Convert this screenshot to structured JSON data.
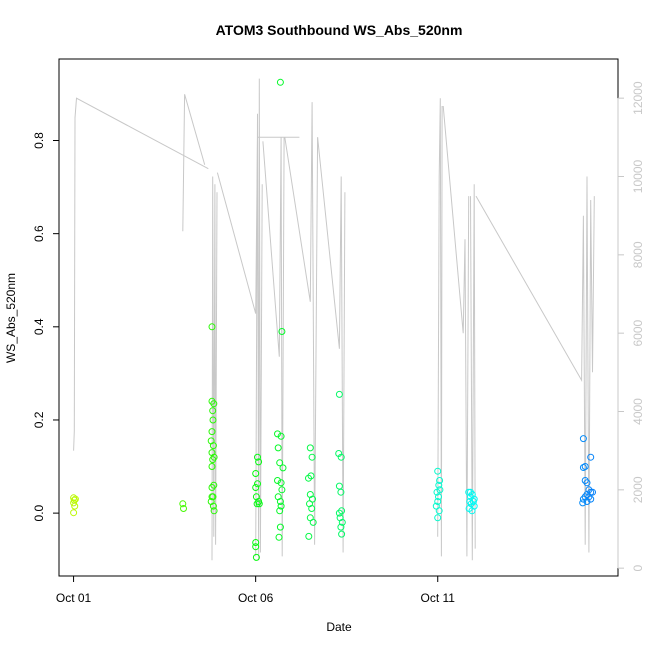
{
  "chart_data": {
    "type": "scatter",
    "title": "ATOM3 Southbound WS_Abs_520nm",
    "xlabel": "Date",
    "ylabel": "WS_Abs_520nm",
    "x_ticks": [
      {
        "day": 0,
        "label": "Oct 01"
      },
      {
        "day": 5,
        "label": "Oct 06"
      },
      {
        "day": 10,
        "label": "Oct 11"
      }
    ],
    "xlim": [
      -0.4,
      14.95
    ],
    "ylim": [
      -0.135,
      0.975
    ],
    "y_ticks": [
      0.0,
      0.2,
      0.4,
      0.6,
      0.8
    ],
    "y2lim": [
      -200,
      13000
    ],
    "y2_ticks": [
      0,
      2000,
      4000,
      6000,
      8000,
      10000,
      12000
    ],
    "grid": false,
    "legend": "none",
    "point_series": {
      "marker": "open-circle",
      "points": [
        [
          0.0,
          0.033
        ],
        [
          0.02,
          0.028
        ],
        [
          0.0,
          0.022
        ],
        [
          0.03,
          0.015
        ],
        [
          0.0,
          0.001
        ],
        [
          0.05,
          0.03
        ],
        [
          3.0,
          0.02
        ],
        [
          3.02,
          0.01
        ],
        [
          3.8,
          0.4
        ],
        [
          3.8,
          0.24
        ],
        [
          3.82,
          0.22
        ],
        [
          3.85,
          0.235
        ],
        [
          3.83,
          0.2
        ],
        [
          3.8,
          0.175
        ],
        [
          3.78,
          0.155
        ],
        [
          3.84,
          0.145
        ],
        [
          3.8,
          0.13
        ],
        [
          3.86,
          0.12
        ],
        [
          3.82,
          0.115
        ],
        [
          3.8,
          0.1
        ],
        [
          3.85,
          0.06
        ],
        [
          3.8,
          0.055
        ],
        [
          3.83,
          0.035
        ],
        [
          3.78,
          0.025
        ],
        [
          3.84,
          0.015
        ],
        [
          3.86,
          0.005
        ],
        [
          3.8,
          0.035
        ],
        [
          5.0,
          -0.063
        ],
        [
          5.0,
          -0.072
        ],
        [
          5.02,
          -0.095
        ],
        [
          5.05,
          0.12
        ],
        [
          5.08,
          0.11
        ],
        [
          5.0,
          0.085
        ],
        [
          5.05,
          0.063
        ],
        [
          5.0,
          0.055
        ],
        [
          5.02,
          0.035
        ],
        [
          5.08,
          0.025
        ],
        [
          5.04,
          0.02
        ],
        [
          5.1,
          0.02
        ],
        [
          5.6,
          0.17
        ],
        [
          5.7,
          0.165
        ],
        [
          5.62,
          0.14
        ],
        [
          5.66,
          0.108
        ],
        [
          5.75,
          0.097
        ],
        [
          5.6,
          0.07
        ],
        [
          5.7,
          0.065
        ],
        [
          5.72,
          0.05
        ],
        [
          5.62,
          0.035
        ],
        [
          5.68,
          0.025
        ],
        [
          5.7,
          0.015
        ],
        [
          5.66,
          0.005
        ],
        [
          5.68,
          -0.03
        ],
        [
          5.64,
          -0.052
        ],
        [
          5.72,
          0.39
        ],
        [
          5.68,
          0.925
        ],
        [
          6.5,
          0.14
        ],
        [
          6.55,
          0.12
        ],
        [
          6.45,
          0.075
        ],
        [
          6.52,
          0.08
        ],
        [
          6.5,
          0.04
        ],
        [
          6.56,
          0.03
        ],
        [
          6.48,
          0.02
        ],
        [
          6.54,
          0.01
        ],
        [
          6.5,
          -0.01
        ],
        [
          6.58,
          -0.02
        ],
        [
          6.46,
          -0.05
        ],
        [
          7.3,
          0.255
        ],
        [
          7.35,
          0.12
        ],
        [
          7.28,
          0.128
        ],
        [
          7.3,
          0.058
        ],
        [
          7.34,
          0.045
        ],
        [
          7.36,
          0.005
        ],
        [
          7.3,
          0.0
        ],
        [
          7.32,
          -0.01
        ],
        [
          7.38,
          -0.02
        ],
        [
          7.34,
          -0.03
        ],
        [
          7.36,
          -0.045
        ],
        [
          10.0,
          0.09
        ],
        [
          10.05,
          0.07
        ],
        [
          10.03,
          0.06
        ],
        [
          9.98,
          0.045
        ],
        [
          10.02,
          0.035
        ],
        [
          10.0,
          0.025
        ],
        [
          9.96,
          0.015
        ],
        [
          10.04,
          0.005
        ],
        [
          10.0,
          -0.01
        ],
        [
          10.06,
          0.05
        ],
        [
          10.85,
          0.045
        ],
        [
          10.95,
          0.04
        ],
        [
          10.9,
          0.035
        ],
        [
          11.0,
          0.03
        ],
        [
          10.88,
          0.025
        ],
        [
          10.92,
          0.02
        ],
        [
          11.0,
          0.015
        ],
        [
          10.86,
          0.01
        ],
        [
          10.94,
          0.005
        ],
        [
          10.98,
          0.025
        ],
        [
          10.9,
          0.045
        ],
        [
          14.0,
          0.16
        ],
        [
          14.05,
          0.1
        ],
        [
          14.0,
          0.098
        ],
        [
          14.2,
          0.12
        ],
        [
          14.05,
          0.07
        ],
        [
          14.1,
          0.065
        ],
        [
          14.15,
          0.05
        ],
        [
          14.2,
          0.045
        ],
        [
          14.25,
          0.045
        ],
        [
          14.1,
          0.04
        ],
        [
          14.05,
          0.035
        ],
        [
          14.0,
          0.03
        ],
        [
          14.15,
          0.035
        ],
        [
          14.2,
          0.03
        ],
        [
          14.1,
          0.025
        ],
        [
          13.98,
          0.022
        ]
      ]
    },
    "line_series": {
      "axis": "right",
      "legs": [
        {
          "path": [
            [
              0.0,
              3000
            ],
            [
              0.02,
              3500
            ],
            [
              0.04,
              11500
            ],
            [
              0.08,
              12000
            ],
            [
              3.7,
              10200
            ]
          ]
        },
        {
          "path": [
            [
              3.0,
              8600
            ],
            [
              3.05,
              12100
            ],
            [
              3.6,
              10300
            ]
          ]
        },
        {
          "path": [
            [
              3.8,
              200
            ],
            [
              3.82,
              10000
            ],
            [
              3.85,
              800
            ],
            [
              3.88,
              9800
            ],
            [
              3.9,
              600
            ],
            [
              3.94,
              9600
            ]
          ]
        },
        {
          "path": [
            [
              3.95,
              10100
            ],
            [
              5.0,
              6500
            ],
            [
              5.05,
              11000
            ],
            [
              6.2,
              11000
            ]
          ]
        },
        {
          "path": [
            [
              5.0,
              300
            ],
            [
              5.05,
              11600
            ],
            [
              5.08,
              200
            ],
            [
              5.1,
              12500
            ],
            [
              5.13,
              400
            ],
            [
              5.18,
              9800
            ]
          ]
        },
        {
          "path": [
            [
              5.2,
              10900
            ],
            [
              5.65,
              5400
            ],
            [
              5.7,
              11000
            ],
            [
              5.73,
              300
            ],
            [
              5.78,
              11000
            ]
          ]
        },
        {
          "path": [
            [
              5.8,
              11000
            ],
            [
              6.5,
              6800
            ],
            [
              6.55,
              11900
            ],
            [
              6.62,
              600
            ],
            [
              6.7,
              11000
            ]
          ]
        },
        {
          "path": [
            [
              6.7,
              11000
            ],
            [
              7.3,
              5600
            ],
            [
              7.35,
              10000
            ],
            [
              7.4,
              400
            ],
            [
              7.45,
              9600
            ]
          ]
        },
        {
          "path": [
            [
              10.0,
              800
            ],
            [
              10.04,
              10000
            ],
            [
              10.07,
              12000
            ],
            [
              10.1,
              300
            ],
            [
              10.12,
              11800
            ]
          ]
        },
        {
          "path": [
            [
              10.15,
              11800
            ],
            [
              10.7,
              6000
            ],
            [
              10.75,
              8400
            ],
            [
              10.8,
              300
            ],
            [
              10.85,
              9500
            ]
          ]
        },
        {
          "path": [
            [
              10.9,
              9500
            ],
            [
              10.95,
              200
            ],
            [
              11.0,
              9800
            ],
            [
              11.03,
              500
            ]
          ]
        },
        {
          "path": [
            [
              11.05,
              9500
            ],
            [
              13.95,
              4800
            ],
            [
              14.0,
              9000
            ],
            [
              14.05,
              600
            ],
            [
              14.1,
              10000
            ]
          ]
        },
        {
          "path": [
            [
              14.1,
              10000
            ],
            [
              14.15,
              400
            ],
            [
              14.2,
              9400
            ],
            [
              14.25,
              5000
            ],
            [
              14.3,
              9500
            ]
          ]
        }
      ]
    }
  }
}
